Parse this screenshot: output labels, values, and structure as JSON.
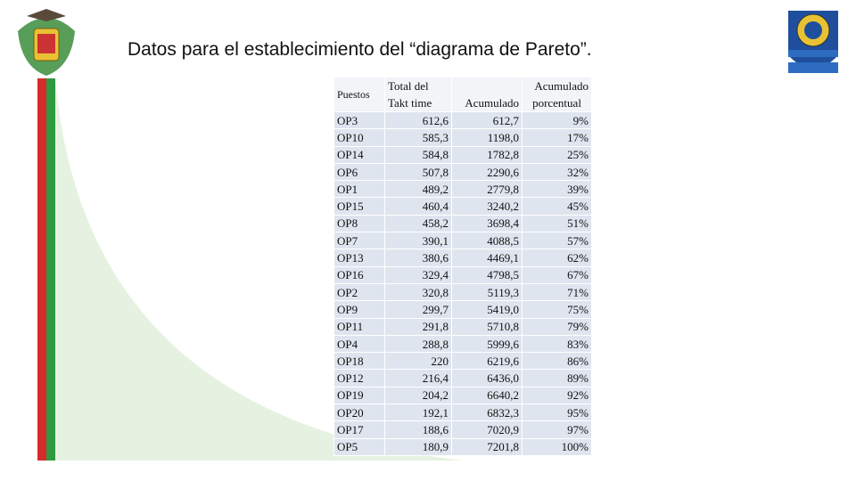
{
  "title": "Datos para el establecimiento del “diagrama de Pareto”.",
  "table": {
    "headers": [
      [
        "Puestos"
      ],
      [
        "Total del",
        "Takt time"
      ],
      [
        "Acumulado"
      ],
      [
        "Acumulado",
        "porcentual"
      ]
    ],
    "rows": [
      [
        "OP3",
        "612,6",
        "612,7",
        "9%"
      ],
      [
        "OP10",
        "585,3",
        "1198,0",
        "17%"
      ],
      [
        "OP14",
        "584,8",
        "1782,8",
        "25%"
      ],
      [
        "OP6",
        "507,8",
        "2290,6",
        "32%"
      ],
      [
        "OP1",
        "489,2",
        "2779,8",
        "39%"
      ],
      [
        "OP15",
        "460,4",
        "3240,2",
        "45%"
      ],
      [
        "OP8",
        "458,2",
        "3698,4",
        "51%"
      ],
      [
        "OP7",
        "390,1",
        "4088,5",
        "57%"
      ],
      [
        "OP13",
        "380,6",
        "4469,1",
        "62%"
      ],
      [
        "OP16",
        "329,4",
        "4798,5",
        "67%"
      ],
      [
        "OP2",
        "320,8",
        "5119,3",
        "71%"
      ],
      [
        "OP9",
        "299,7",
        "5419,0",
        "75%"
      ],
      [
        "OP11",
        "291,8",
        "5710,8",
        "79%"
      ],
      [
        "OP4",
        "288,8",
        "5999,6",
        "83%"
      ],
      [
        "OP18",
        "220",
        "6219,6",
        "86%"
      ],
      [
        "OP12",
        "216,4",
        "6436,0",
        "89%"
      ],
      [
        "OP19",
        "204,2",
        "6640,2",
        "92%"
      ],
      [
        "OP20",
        "192,1",
        "6832,3",
        "95%"
      ],
      [
        "OP17",
        "188,6",
        "7020,9",
        "97%"
      ],
      [
        "OP5",
        "180,9",
        "7201,8",
        "100%"
      ]
    ]
  }
}
